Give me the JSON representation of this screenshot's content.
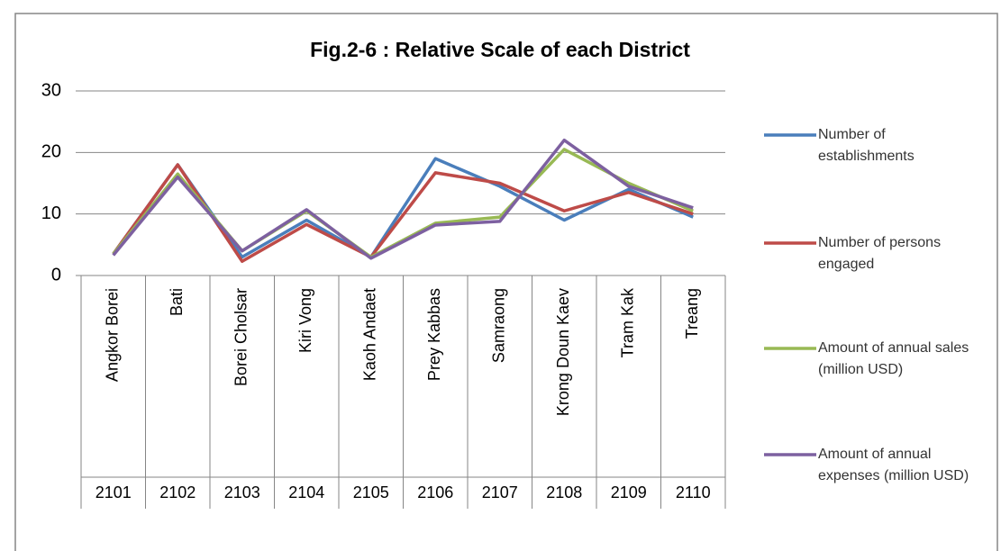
{
  "chart_data": {
    "type": "line",
    "title": "Fig.2-6 : Relative Scale of each District",
    "categories": [
      "Angkor Borei",
      "Bati",
      "Borei Cholsar",
      "Kiri Vong",
      "Kaoh Andaet",
      "Prey Kabbas",
      "Samraong",
      "Krong Doun Kaev",
      "Tram Kak",
      "Treang"
    ],
    "category_codes": [
      "2101",
      "2102",
      "2103",
      "2104",
      "2105",
      "2106",
      "2107",
      "2108",
      "2109",
      "2110"
    ],
    "series": [
      {
        "name": "Number of establishments",
        "color": "#4a7ebb",
        "values": [
          3.5,
          18,
          3,
          9,
          3,
          19,
          14.5,
          9,
          14,
          9.5
        ]
      },
      {
        "name": "Number of persons engaged",
        "color": "#be4b48",
        "values": [
          3.5,
          18,
          2.3,
          8.3,
          3,
          16.7,
          15,
          10.5,
          13.5,
          10
        ]
      },
      {
        "name": "Amount of annual sales (million USD)",
        "color": "#98b954",
        "values": [
          3.5,
          16.5,
          4,
          10.5,
          3,
          8.5,
          9.5,
          20.5,
          15,
          10.5
        ]
      },
      {
        "name": "Amount of annual expenses (million USD)",
        "color": "#7d60a0",
        "values": [
          3.3,
          16,
          4,
          10.7,
          2.8,
          8.2,
          8.8,
          22,
          14.5,
          11
        ]
      }
    ],
    "ylim": [
      0,
      30
    ],
    "yticks": [
      0,
      10,
      20,
      30
    ],
    "grid": true,
    "legend": "right"
  }
}
